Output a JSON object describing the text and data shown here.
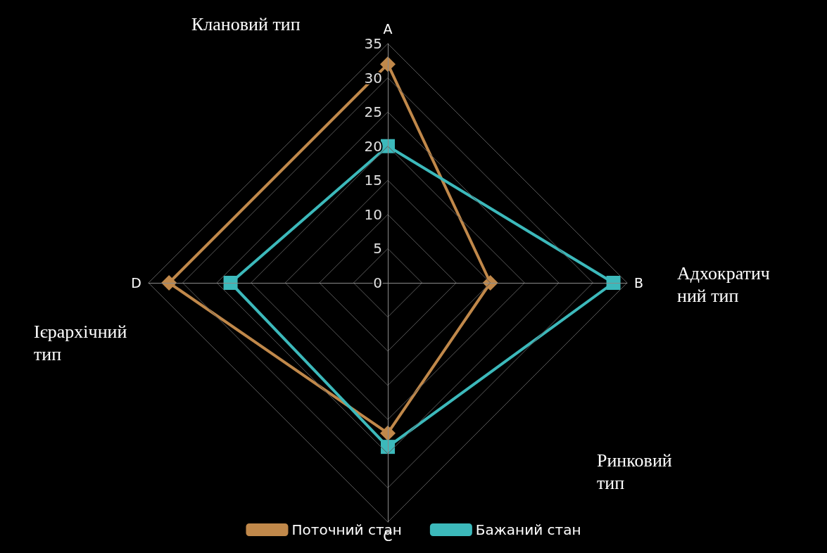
{
  "chart_data": {
    "type": "radar",
    "categories": [
      "A",
      "B",
      "C",
      "D"
    ],
    "series": [
      {
        "name": "Поточний стан",
        "color": "#c0884a",
        "marker": "diamond",
        "values": [
          32,
          15,
          22,
          32
        ]
      },
      {
        "name": "Бажаний стан",
        "color": "#3cb9bb",
        "marker": "square",
        "values": [
          20,
          33,
          24,
          23
        ]
      }
    ],
    "ylim": [
      0,
      35
    ],
    "yticks": [
      0,
      5,
      10,
      15,
      20,
      25,
      30,
      35
    ],
    "grid": true,
    "legend": "bottom",
    "annotations": [
      "Клановий тип",
      "Адхократичний тип",
      "Ринковий тип",
      "Ієрархічний тип"
    ]
  }
}
